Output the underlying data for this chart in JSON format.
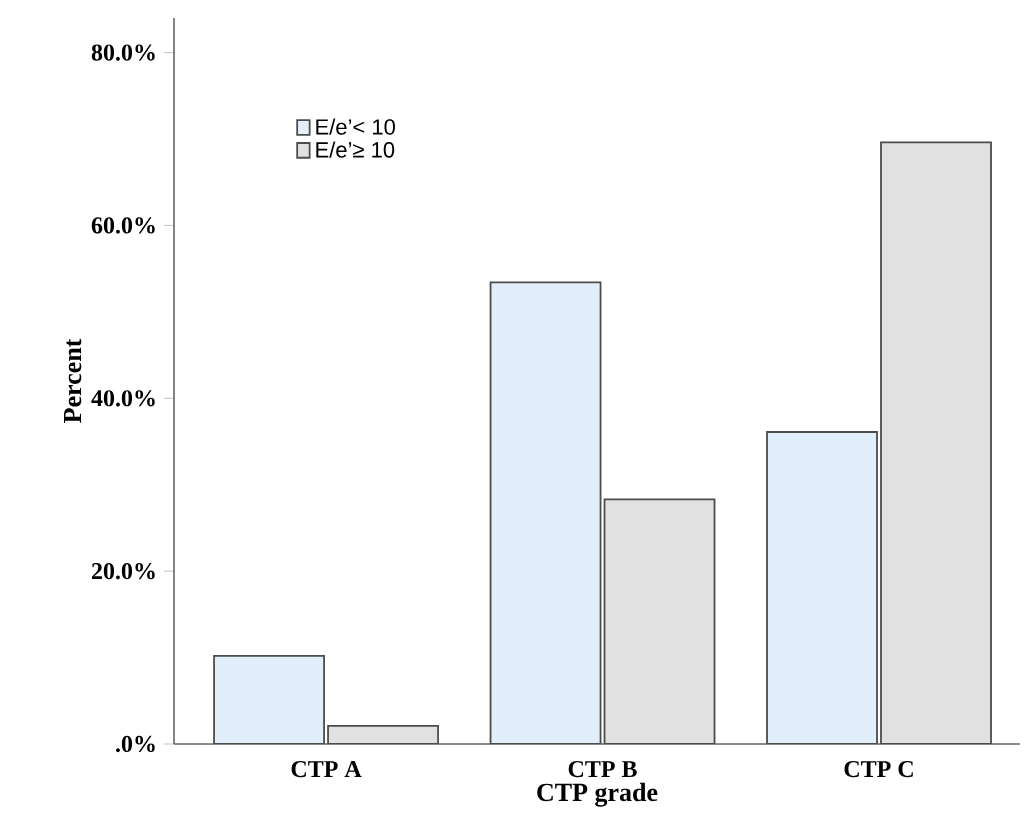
{
  "chart_data": {
    "type": "bar",
    "xlabel": "CTP grade",
    "ylabel": "Percent",
    "categories": [
      "CTP A",
      "CTP B",
      "CTP C"
    ],
    "series": [
      {
        "name": "E/e’< 10",
        "color": "#e3eefb",
        "values": [
          10.2,
          53.4,
          36.1
        ]
      },
      {
        "name": "E/e’≥ 10",
        "color": "#e1e1e1",
        "values": [
          2.1,
          28.3,
          69.6
        ]
      }
    ],
    "ylim": [
      0,
      84
    ],
    "yticks": [
      {
        "value": 0,
        "label": ".0%"
      },
      {
        "value": 20,
        "label": "20.0%"
      },
      {
        "value": 40,
        "label": "40.0%"
      },
      {
        "value": 60,
        "label": "60.0%"
      },
      {
        "value": 80,
        "label": "80.0%"
      }
    ],
    "legend": "top left"
  }
}
